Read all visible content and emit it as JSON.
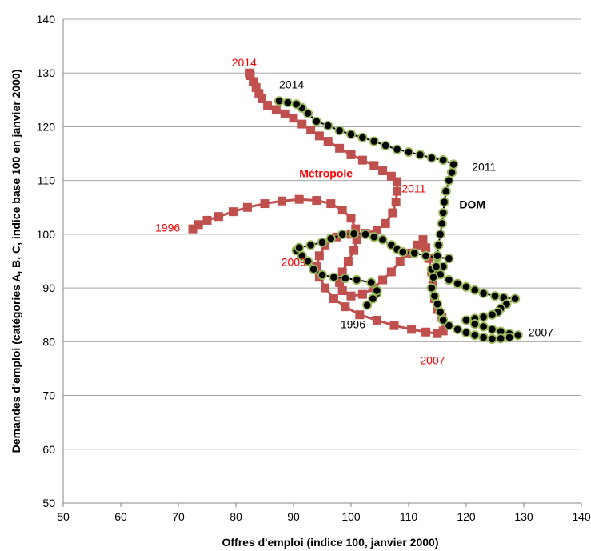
{
  "chart_data": {
    "type": "scatter",
    "xlabel": "Offres d'emploi (indice 100, janvier 2000)",
    "ylabel": "Demandes d'emploi (catégories A, B, C, indice base 100 en janvier 2000)",
    "xlim": [
      50,
      140
    ],
    "ylim": [
      50,
      140
    ],
    "xticks": [
      50,
      60,
      70,
      80,
      90,
      100,
      110,
      120,
      130,
      140
    ],
    "yticks": [
      50,
      60,
      70,
      80,
      90,
      100,
      110,
      120,
      130,
      140
    ],
    "grid": "horizontal",
    "legend": "none",
    "colors": {
      "metropole": "#c0504d",
      "dom_fill": "#000000",
      "dom_stroke": "#9bbb59",
      "label_red": "#ff0000",
      "label_black": "#000000",
      "grid": "#a6a6a6"
    },
    "series": [
      {
        "name": "Métropole",
        "marker": "square",
        "points": [
          [
            72.5,
            101.0
          ],
          [
            73.5,
            101.8
          ],
          [
            75.0,
            102.6
          ],
          [
            77.0,
            103.3
          ],
          [
            79.5,
            104.2
          ],
          [
            82.0,
            105.0
          ],
          [
            85.0,
            105.7
          ],
          [
            88.0,
            106.2
          ],
          [
            91.0,
            106.5
          ],
          [
            94.0,
            106.3
          ],
          [
            96.5,
            105.7
          ],
          [
            98.5,
            104.5
          ],
          [
            100.0,
            103.0
          ],
          [
            100.8,
            101.0
          ],
          [
            101.0,
            99.0
          ],
          [
            100.5,
            97.0
          ],
          [
            99.5,
            95.0
          ],
          [
            98.5,
            93.0
          ],
          [
            98.0,
            91.0
          ],
          [
            98.5,
            89.5
          ],
          [
            100.0,
            88.5
          ],
          [
            102.0,
            88.8
          ],
          [
            104.0,
            90.0
          ],
          [
            105.5,
            91.5
          ],
          [
            107.0,
            93.0
          ],
          [
            108.5,
            95.0
          ],
          [
            110.0,
            96.5
          ],
          [
            111.5,
            98.0
          ],
          [
            112.5,
            99.0
          ],
          [
            113.0,
            97.5
          ],
          [
            113.5,
            95.5
          ],
          [
            114.0,
            93.0
          ],
          [
            114.2,
            90.5
          ],
          [
            114.5,
            88.0
          ],
          [
            115.0,
            86.0
          ],
          [
            115.8,
            84.5
          ],
          [
            116.5,
            83.0
          ],
          [
            116.0,
            82.0
          ],
          [
            115.0,
            81.5
          ],
          [
            113.0,
            81.8
          ],
          [
            110.5,
            82.3
          ],
          [
            107.5,
            83.0
          ],
          [
            104.5,
            84.0
          ],
          [
            101.5,
            85.0
          ],
          [
            99.0,
            86.5
          ],
          [
            97.0,
            88.0
          ],
          [
            95.5,
            90.0
          ],
          [
            94.5,
            92.0
          ],
          [
            94.0,
            94.0
          ],
          [
            94.5,
            96.0
          ],
          [
            95.5,
            98.0
          ],
          [
            97.5,
            99.5
          ],
          [
            100.0,
            100.0
          ],
          [
            102.5,
            100.2
          ],
          [
            104.5,
            100.8
          ],
          [
            106.0,
            102.0
          ],
          [
            107.2,
            104.0
          ],
          [
            107.8,
            106.0
          ],
          [
            108.0,
            108.0
          ],
          [
            108.0,
            109.8
          ],
          [
            107.0,
            110.8
          ],
          [
            105.5,
            111.8
          ],
          [
            104.0,
            112.8
          ],
          [
            102.0,
            113.8
          ],
          [
            100.0,
            114.8
          ],
          [
            98.0,
            116.0
          ],
          [
            96.0,
            117.3
          ],
          [
            94.5,
            118.3
          ],
          [
            93.0,
            119.4
          ],
          [
            91.5,
            120.5
          ],
          [
            90.0,
            121.6
          ],
          [
            88.5,
            122.4
          ],
          [
            87.0,
            123.2
          ],
          [
            85.5,
            124.0
          ],
          [
            84.5,
            125.2
          ],
          [
            84.0,
            126.2
          ],
          [
            83.5,
            127.3
          ],
          [
            83.0,
            128.4
          ],
          [
            82.5,
            129.5
          ],
          [
            82.3,
            130.0
          ]
        ]
      },
      {
        "name": "DOM",
        "marker": "circle",
        "points": [
          [
            104.5,
            89.0
          ],
          [
            103.8,
            88.0
          ],
          [
            102.8,
            86.8
          ],
          [
            104.5,
            89.5
          ],
          [
            103.5,
            91.0
          ],
          [
            101.0,
            91.5
          ],
          [
            99.0,
            91.8
          ],
          [
            97.0,
            92.0
          ],
          [
            95.0,
            92.4
          ],
          [
            93.5,
            93.5
          ],
          [
            92.5,
            95.0
          ],
          [
            91.5,
            96.0
          ],
          [
            90.5,
            97.0
          ],
          [
            91.0,
            97.5
          ],
          [
            93.0,
            98.0
          ],
          [
            95.0,
            98.5
          ],
          [
            96.5,
            99.2
          ],
          [
            98.5,
            100.0
          ],
          [
            100.5,
            100.1
          ],
          [
            102.5,
            100.0
          ],
          [
            104.0,
            99.5
          ],
          [
            105.5,
            99.0
          ],
          [
            107.0,
            98.0
          ],
          [
            108.0,
            97.2
          ],
          [
            109.0,
            96.7
          ],
          [
            111.0,
            96.5
          ],
          [
            113.0,
            96.0
          ],
          [
            115.0,
            95.7
          ],
          [
            117.0,
            95.5
          ],
          [
            116.0,
            94.0
          ],
          [
            115.0,
            93.2
          ],
          [
            114.0,
            93.5
          ],
          [
            115.5,
            92.5
          ],
          [
            117.0,
            91.5
          ],
          [
            118.5,
            90.8
          ],
          [
            120.0,
            90.2
          ],
          [
            121.5,
            89.6
          ],
          [
            123.0,
            89.0
          ],
          [
            125.0,
            88.5
          ],
          [
            126.5,
            88.2
          ],
          [
            128.5,
            88.0
          ],
          [
            127.0,
            87.0
          ],
          [
            126.0,
            86.2
          ],
          [
            125.5,
            85.5
          ],
          [
            124.5,
            85.0
          ],
          [
            123.0,
            84.6
          ],
          [
            121.5,
            84.3
          ],
          [
            120.0,
            84.0
          ],
          [
            121.5,
            83.3
          ],
          [
            123.0,
            82.8
          ],
          [
            124.5,
            82.3
          ],
          [
            126.0,
            81.9
          ],
          [
            127.5,
            81.5
          ],
          [
            129.0,
            81.2
          ],
          [
            127.5,
            80.8
          ],
          [
            126.0,
            80.6
          ],
          [
            124.5,
            80.5
          ],
          [
            123.0,
            80.8
          ],
          [
            121.5,
            81.2
          ],
          [
            120.0,
            81.7
          ],
          [
            118.5,
            82.3
          ],
          [
            117.0,
            83.0
          ],
          [
            116.0,
            84.0
          ],
          [
            115.5,
            85.5
          ],
          [
            115.0,
            87.0
          ],
          [
            114.5,
            88.5
          ],
          [
            114.0,
            90.0
          ],
          [
            114.3,
            92.0
          ],
          [
            114.8,
            94.0
          ],
          [
            115.0,
            96.0
          ],
          [
            115.2,
            98.0
          ],
          [
            115.5,
            100.0
          ],
          [
            115.8,
            102.0
          ],
          [
            116.0,
            104.0
          ],
          [
            116.2,
            106.0
          ],
          [
            116.5,
            108.0
          ],
          [
            117.0,
            110.0
          ],
          [
            117.5,
            111.5
          ],
          [
            117.8,
            113.0
          ],
          [
            116.0,
            113.8
          ],
          [
            114.0,
            114.2
          ],
          [
            112.0,
            114.8
          ],
          [
            110.0,
            115.3
          ],
          [
            108.0,
            115.8
          ],
          [
            106.0,
            116.5
          ],
          [
            104.0,
            117.3
          ],
          [
            102.0,
            118.0
          ],
          [
            100.0,
            118.6
          ],
          [
            98.0,
            119.3
          ],
          [
            96.0,
            120.2
          ],
          [
            94.0,
            121.0
          ],
          [
            92.5,
            122.5
          ],
          [
            91.5,
            123.5
          ],
          [
            90.5,
            124.2
          ],
          [
            89.0,
            124.5
          ],
          [
            87.5,
            124.8
          ]
        ]
      }
    ],
    "annotations": [
      {
        "text": "2014",
        "x": 83.6,
        "y": 131.2,
        "color": "#ff0000",
        "bold": false,
        "anchor": "end"
      },
      {
        "text": "2014",
        "x": 87.5,
        "y": 127.1,
        "color": "#000000",
        "bold": false,
        "anchor": "start"
      },
      {
        "text": "Métropole",
        "x": 91.0,
        "y": 110.6,
        "color": "#ff0000",
        "bold": true,
        "anchor": "start"
      },
      {
        "text": "2011",
        "x": 108.8,
        "y": 107.8,
        "color": "#ff0000",
        "bold": false,
        "anchor": "start"
      },
      {
        "text": "2011",
        "x": 121.0,
        "y": 111.8,
        "color": "#000000",
        "bold": false,
        "anchor": "start"
      },
      {
        "text": "DOM",
        "x": 118.8,
        "y": 104.8,
        "color": "#000000",
        "bold": true,
        "anchor": "start"
      },
      {
        "text": "1996",
        "x": 70.3,
        "y": 100.5,
        "color": "#ff0000",
        "bold": false,
        "anchor": "end"
      },
      {
        "text": "2009",
        "x": 92.2,
        "y": 94.1,
        "color": "#ff0000",
        "bold": false,
        "anchor": "end"
      },
      {
        "text": "1996",
        "x": 102.5,
        "y": 82.5,
        "color": "#000000",
        "bold": false,
        "anchor": "end"
      },
      {
        "text": "2007",
        "x": 130.8,
        "y": 81.0,
        "color": "#000000",
        "bold": false,
        "anchor": "start"
      },
      {
        "text": "2007",
        "x": 112.0,
        "y": 75.8,
        "color": "#ff0000",
        "bold": false,
        "anchor": "start"
      }
    ]
  }
}
